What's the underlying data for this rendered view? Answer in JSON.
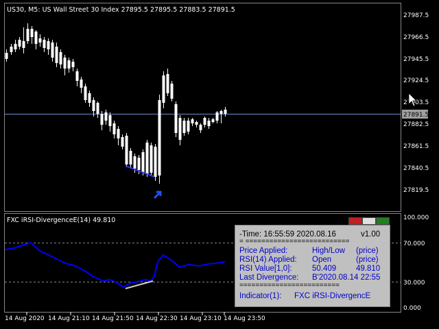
{
  "main_chart": {
    "header": "US30, M5:  US Wall Street 30 Index  27895.5 27895.5 27883.5 27891.5",
    "price_ticks": [
      "27987.5",
      "27966.5",
      "27945.5",
      "27924.5",
      "27903.5",
      "27882.5",
      "27861.5",
      "27840.5",
      "27819.5"
    ],
    "current_price": "27891.5"
  },
  "indicator": {
    "header": "FXC iRSI-DivergenceE(14) 49.810",
    "levels": [
      "100.000",
      "70.000",
      "30.000",
      "0.000"
    ]
  },
  "time_axis": [
    "14 Aug 2020",
    "14 Aug 21:10",
    "14 Aug 21:50",
    "14 Aug 22:30",
    "14 Aug 23:10",
    "14 Aug 23:50"
  ],
  "info_panel": {
    "time_label": "-Time: 16:55:59 2020.08.16",
    "version": "v1.00",
    "separator_top": "= ==========================",
    "price_applied_label": "Price Applied:",
    "price_applied_value": "High/Low",
    "price_applied_unit": "(price)",
    "rsi_applied_label": "RSI(14) Applied:",
    "rsi_applied_value": "Open",
    "rsi_applied_unit": "(price)",
    "rsi_value_label": "RSI Value[1,0]:",
    "rsi_value_1": "50.409",
    "rsi_value_0": "49.810",
    "last_div_label": "Last Divergence:",
    "last_div_value": "B'2020.08.14 22:55",
    "separator_bottom": "=========================",
    "indicator_label": "Indicator(1):",
    "indicator_value": "FXC iRSI-DivergencE"
  },
  "colors": {
    "background": "#000000",
    "candle": "#ffffff",
    "rsi_line": "#0000ff",
    "divergence": "#3333ff",
    "arrow": "#1f4fff",
    "grid": "#4a6fb0"
  }
}
